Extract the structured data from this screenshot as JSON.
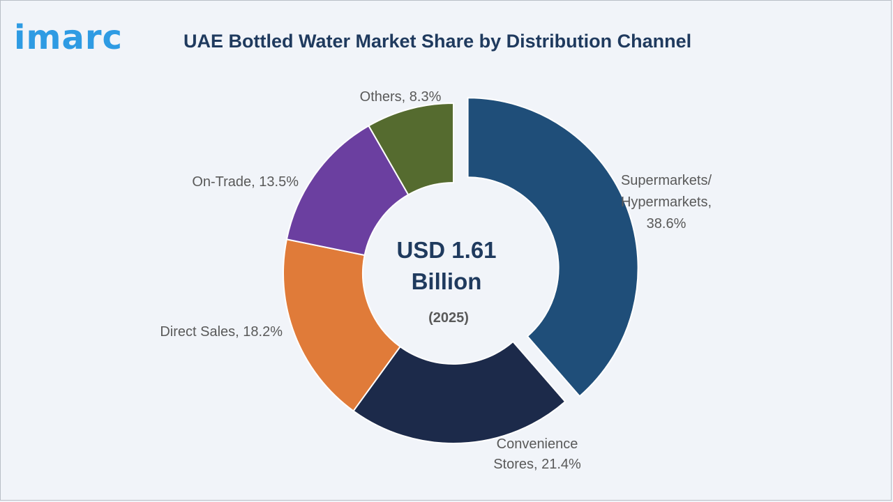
{
  "brand": {
    "logo_text": "imarc"
  },
  "chart_data": {
    "type": "pie",
    "variant": "donut",
    "title": "UAE Bottled Water Market Share by Distribution Channel",
    "center": {
      "value": "USD 1.61",
      "unit": "Billion",
      "year": "(2025)"
    },
    "slices": [
      {
        "name": "Supermarkets/ Hypermarkets",
        "value": 38.6,
        "label_lines": [
          "Supermarkets/",
          "Hypermarkets,",
          "38.6%"
        ],
        "color": "#1f4e79",
        "exploded": true
      },
      {
        "name": "Convenience Stores",
        "value": 21.4,
        "label_lines": [
          "Convenience",
          "Stores, 21.4%"
        ],
        "color": "#1c2a4a",
        "exploded": false
      },
      {
        "name": "Direct Sales",
        "value": 18.2,
        "label_lines": [
          "Direct Sales, 18.2%"
        ],
        "color": "#e07b39",
        "exploded": false
      },
      {
        "name": "On-Trade",
        "value": 13.5,
        "label_lines": [
          "On-Trade, 13.5%"
        ],
        "color": "#6b3fa0",
        "exploded": false
      },
      {
        "name": "Others",
        "value": 8.3,
        "label_lines": [
          "Others, 8.3%"
        ],
        "color": "#556b2f",
        "exploded": false
      }
    ]
  }
}
